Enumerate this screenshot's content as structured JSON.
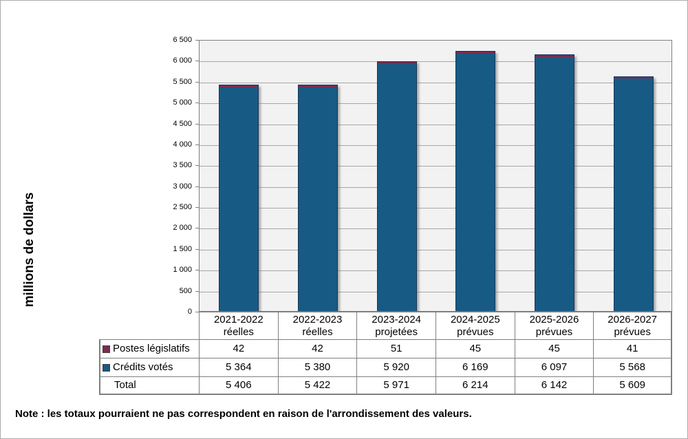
{
  "chart_data": {
    "type": "bar",
    "stacked": true,
    "title": "",
    "ylabel": "millions de dollars",
    "xlabel": "",
    "ylim": [
      0,
      6500
    ],
    "ytick_step": 500,
    "ytick_labels": [
      "0",
      "500",
      "1 000",
      "1 500",
      "2 000",
      "2 500",
      "3 000",
      "3 500",
      "4 000",
      "4 500",
      "5 000",
      "5 500",
      "6 000",
      "6 500"
    ],
    "grid": "horizontal",
    "legend_position": "table-left-column",
    "categories": [
      {
        "line1": "2021-2022",
        "line2": "réelles"
      },
      {
        "line1": "2022-2023",
        "line2": "réelles"
      },
      {
        "line1": "2023-2024",
        "line2": "projetées"
      },
      {
        "line1": "2024-2025",
        "line2": "prévues"
      },
      {
        "line1": "2025-2026",
        "line2": "prévues"
      },
      {
        "line1": "2026-2027",
        "line2": "prévues"
      }
    ],
    "series": [
      {
        "name": "Postes législatifs",
        "color": "#7C2B52",
        "values": [
          42,
          42,
          51,
          45,
          45,
          41
        ]
      },
      {
        "name": "Crédits votés",
        "color": "#175A84",
        "values": [
          5364,
          5380,
          5920,
          6169,
          6097,
          5568
        ]
      }
    ],
    "totals": [
      5406,
      5422,
      5971,
      6214,
      6142,
      5609
    ]
  },
  "table": {
    "rows": [
      {
        "label": "Postes législatifs",
        "marker_color": "#7C2B52",
        "values": [
          "42",
          "42",
          "51",
          "45",
          "45",
          "41"
        ]
      },
      {
        "label": "Crédits votés",
        "marker_color": "#175A84",
        "values": [
          "5 364",
          "5 380",
          "5 920",
          "6 169",
          "6 097",
          "5 568"
        ]
      },
      {
        "label": "Total",
        "marker_color": "",
        "values": [
          "5 406",
          "5 422",
          "5 971",
          "6 214",
          "6 142",
          "5 609"
        ]
      }
    ]
  },
  "note": "Note : les totaux pourraient ne pas correspondent en raison de l'arrondissement des valeurs.",
  "colors": {
    "bar_blue": "#175A84",
    "bar_maroon": "#7C2B52",
    "bar_border": "#16365C",
    "plot_bg": "#F2F2F2",
    "gridline": "#A6A6A6",
    "axis": "#7F7F7F",
    "table_border": "#7F7F7F"
  }
}
